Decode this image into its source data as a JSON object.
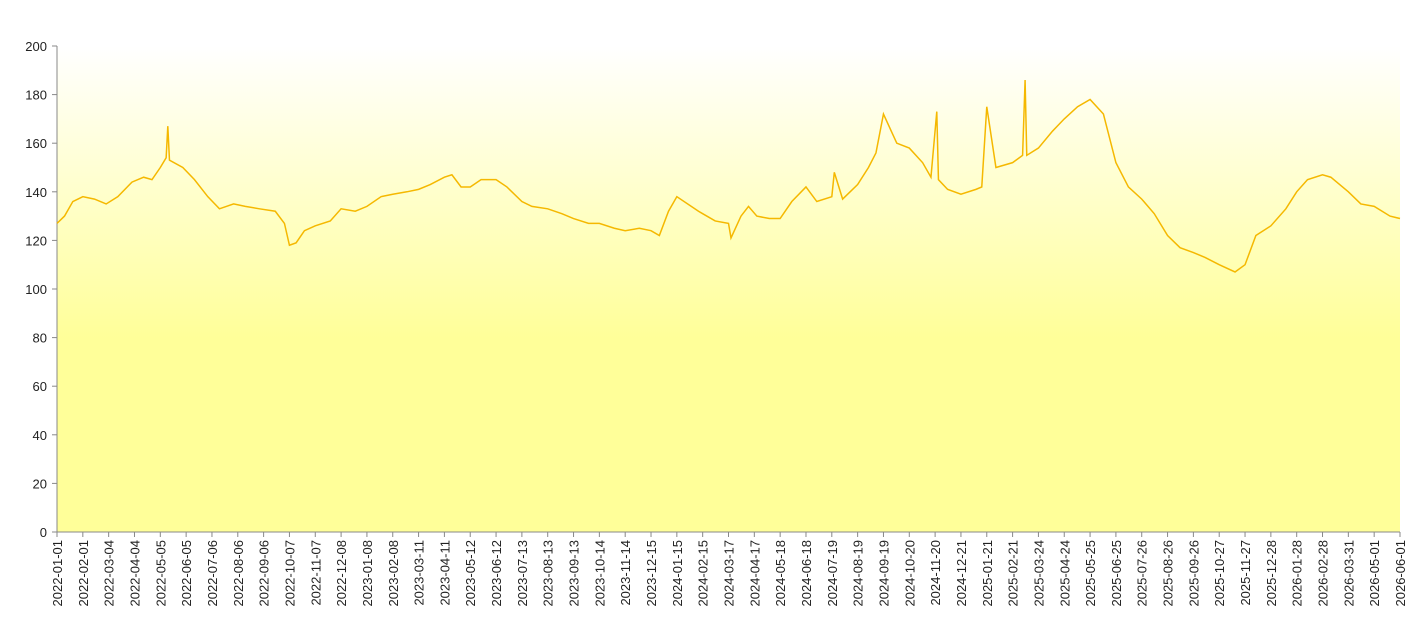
{
  "chart_data": {
    "type": "line",
    "x": [
      "2022-01-01",
      "2022-01-10",
      "2022-01-20",
      "2022-02-01",
      "2022-02-15",
      "2022-03-01",
      "2022-03-15",
      "2022-04-01",
      "2022-04-15",
      "2022-04-25",
      "2022-05-05",
      "2022-05-12",
      "2022-05-14",
      "2022-05-16",
      "2022-06-01",
      "2022-06-15",
      "2022-07-01",
      "2022-07-15",
      "2022-08-01",
      "2022-08-15",
      "2022-09-01",
      "2022-09-20",
      "2022-10-01",
      "2022-10-07",
      "2022-10-15",
      "2022-10-25",
      "2022-11-07",
      "2022-11-25",
      "2022-12-08",
      "2022-12-25",
      "2023-01-08",
      "2023-01-25",
      "2023-02-08",
      "2023-02-25",
      "2023-03-11",
      "2023-03-25",
      "2023-04-11",
      "2023-04-20",
      "2023-05-01",
      "2023-05-12",
      "2023-05-25",
      "2023-06-12",
      "2023-06-25",
      "2023-07-13",
      "2023-07-25",
      "2023-08-13",
      "2023-08-30",
      "2023-09-13",
      "2023-10-01",
      "2023-10-14",
      "2023-11-01",
      "2023-11-14",
      "2023-12-01",
      "2023-12-15",
      "2023-12-25",
      "2024-01-05",
      "2024-01-15",
      "2024-02-10",
      "2024-02-15",
      "2024-03-01",
      "2024-03-17",
      "2024-03-20",
      "2024-04-01",
      "2024-04-10",
      "2024-04-20",
      "2024-05-05",
      "2024-05-18",
      "2024-06-01",
      "2024-06-18",
      "2024-07-01",
      "2024-07-19",
      "2024-07-22",
      "2024-08-01",
      "2024-08-19",
      "2024-09-01",
      "2024-09-10",
      "2024-09-19",
      "2024-10-05",
      "2024-10-20",
      "2024-11-05",
      "2024-11-15",
      "2024-11-22",
      "2024-11-24",
      "2024-12-05",
      "2024-12-21",
      "2025-01-08",
      "2025-01-15",
      "2025-01-21",
      "2025-02-01",
      "2025-02-21",
      "2025-03-05",
      "2025-03-08",
      "2025-03-10",
      "2025-03-24",
      "2025-04-10",
      "2025-04-24",
      "2025-05-10",
      "2025-05-25",
      "2025-06-10",
      "2025-06-25",
      "2025-07-10",
      "2025-07-26",
      "2025-08-10",
      "2025-08-26",
      "2025-09-10",
      "2025-09-26",
      "2025-10-10",
      "2025-10-27",
      "2025-11-15",
      "2025-11-27",
      "2025-12-10",
      "2025-12-28",
      "2026-01-15",
      "2026-01-28",
      "2026-02-10",
      "2026-02-28",
      "2026-03-10",
      "2026-03-31",
      "2026-04-15",
      "2026-05-01",
      "2026-05-20",
      "2026-06-01"
    ],
    "series": [
      {
        "color": "#f5b800",
        "values": [
          127,
          130,
          136,
          138,
          137,
          135,
          138,
          144,
          146,
          145,
          150,
          154,
          167,
          153,
          150,
          145,
          138,
          133,
          135,
          134,
          133,
          132,
          127,
          118,
          119,
          124,
          126,
          128,
          133,
          132,
          134,
          138,
          139,
          140,
          141,
          143,
          146,
          147,
          142,
          142,
          145,
          145,
          142,
          136,
          134,
          133,
          131,
          129,
          127,
          127,
          125,
          124,
          125,
          124,
          122,
          132,
          138,
          132,
          131,
          128,
          127,
          121,
          130,
          134,
          130,
          129,
          129,
          136,
          142,
          136,
          138,
          148,
          137,
          143,
          150,
          156,
          172,
          160,
          158,
          152,
          146,
          173,
          145,
          141,
          139,
          141,
          142,
          175,
          150,
          152,
          155,
          186,
          155,
          158,
          165,
          170,
          175,
          178,
          172,
          152,
          142,
          137,
          131,
          122,
          117,
          115,
          113,
          110,
          107,
          110,
          122,
          126,
          133,
          140,
          145,
          147,
          146,
          140,
          135,
          134,
          130,
          129
        ]
      }
    ],
    "xlim": [
      "2022-01-01",
      "2026-06-01"
    ],
    "xticks": [
      "2022-01-01",
      "2022-02-01",
      "2022-03-04",
      "2022-04-04",
      "2022-05-05",
      "2022-06-05",
      "2022-07-06",
      "2022-08-06",
      "2022-09-06",
      "2022-10-07",
      "2022-11-07",
      "2022-12-08",
      "2023-01-08",
      "2023-02-08",
      "2023-03-11",
      "2023-04-11",
      "2023-05-12",
      "2023-06-12",
      "2023-07-13",
      "2023-08-13",
      "2023-09-13",
      "2023-10-14",
      "2023-11-14",
      "2023-12-15",
      "2024-01-15",
      "2024-02-15",
      "2024-03-17",
      "2024-04-17",
      "2024-05-18",
      "2024-06-18",
      "2024-07-19",
      "2024-08-19",
      "2024-09-19",
      "2024-10-20",
      "2024-11-20",
      "2024-12-21",
      "2025-01-21",
      "2025-02-21",
      "2025-03-24",
      "2025-04-24",
      "2025-05-25",
      "2025-06-25",
      "2025-07-26",
      "2025-08-26",
      "2025-09-26",
      "2025-10-27",
      "2025-11-27",
      "2025-12-28",
      "2026-01-28",
      "2026-02-28",
      "2026-03-31",
      "2026-05-01",
      "2026-06-01"
    ],
    "ylim": [
      0,
      200
    ],
    "yticks": [
      0,
      20,
      40,
      60,
      80,
      100,
      120,
      140,
      160,
      180,
      200
    ],
    "background_gradient": [
      "#ffffff",
      "#ffff99"
    ]
  }
}
